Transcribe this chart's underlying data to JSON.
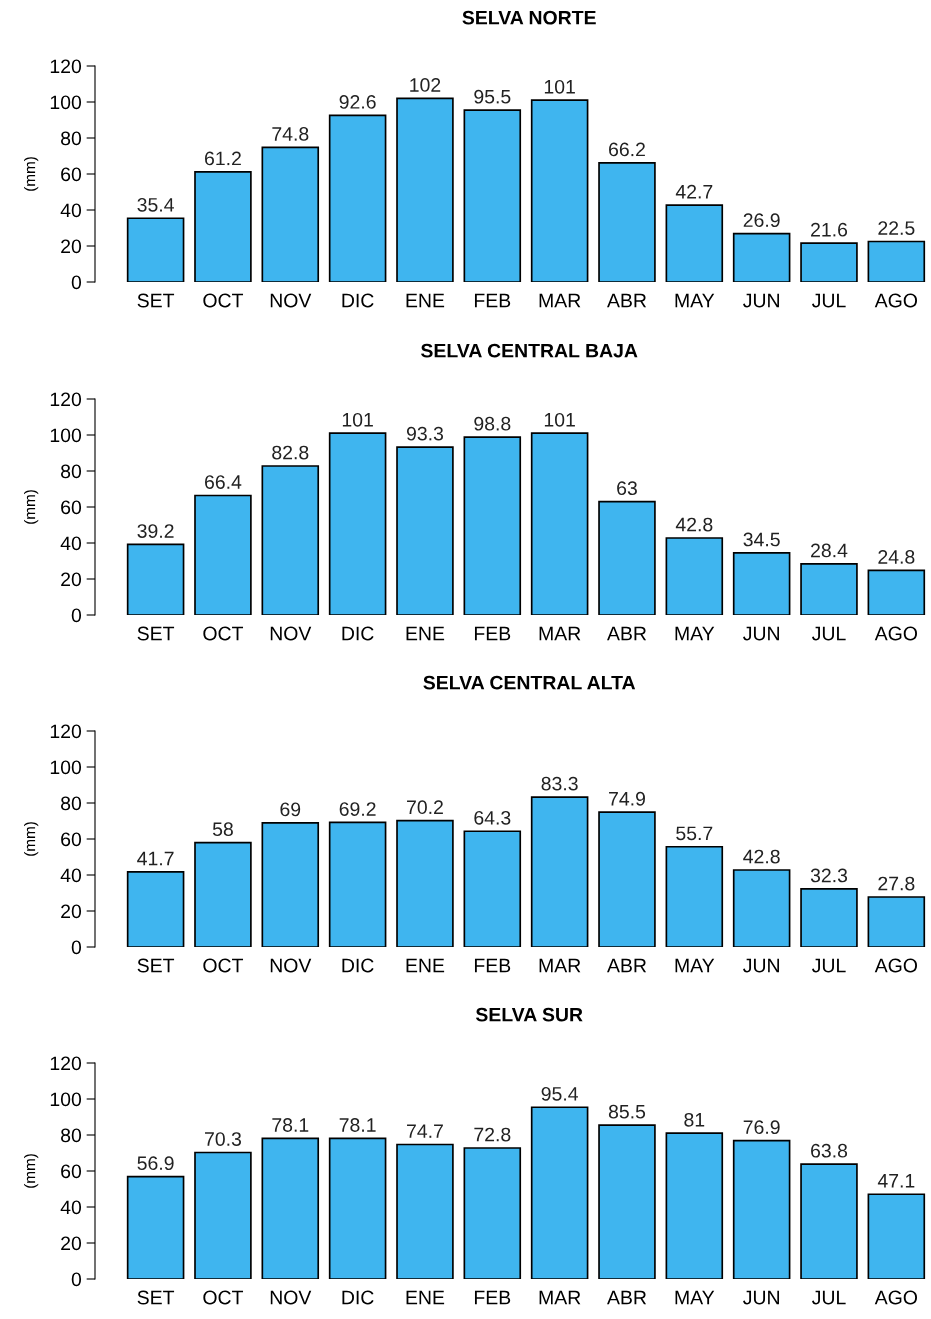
{
  "chart_data": [
    {
      "type": "bar",
      "title": "SELVA NORTE",
      "ylabel": "(mm)",
      "categories": [
        "SET",
        "OCT",
        "NOV",
        "DIC",
        "ENE",
        "FEB",
        "MAR",
        "ABR",
        "MAY",
        "JUN",
        "JUL",
        "AGO"
      ],
      "values": [
        35.4,
        61.2,
        74.8,
        92.6,
        102,
        95.5,
        101,
        66.2,
        42.7,
        26.9,
        21.6,
        22.5
      ],
      "color": "#3fb5ef",
      "ylim": [
        0,
        120
      ],
      "yticks": [
        0,
        20,
        40,
        60,
        80,
        100,
        120
      ],
      "data_labels": true
    },
    {
      "type": "bar",
      "title": "SELVA CENTRAL BAJA",
      "ylabel": "(mm)",
      "categories": [
        "SET",
        "OCT",
        "NOV",
        "DIC",
        "ENE",
        "FEB",
        "MAR",
        "ABR",
        "MAY",
        "JUN",
        "JUL",
        "AGO"
      ],
      "values": [
        39.2,
        66.4,
        82.8,
        101,
        93.3,
        98.8,
        101,
        63,
        42.8,
        34.5,
        28.4,
        24.8
      ],
      "color": "#3fb5ef",
      "ylim": [
        0,
        120
      ],
      "yticks": [
        0,
        20,
        40,
        60,
        80,
        100,
        120
      ],
      "data_labels": true
    },
    {
      "type": "bar",
      "title": "SELVA CENTRAL ALTA",
      "ylabel": "(mm)",
      "categories": [
        "SET",
        "OCT",
        "NOV",
        "DIC",
        "ENE",
        "FEB",
        "MAR",
        "ABR",
        "MAY",
        "JUN",
        "JUL",
        "AGO"
      ],
      "values": [
        41.7,
        58,
        69,
        69.2,
        70.2,
        64.3,
        83.3,
        74.9,
        55.7,
        42.8,
        32.3,
        27.8
      ],
      "color": "#3fb5ef",
      "ylim": [
        0,
        120
      ],
      "yticks": [
        0,
        20,
        40,
        60,
        80,
        100,
        120
      ],
      "data_labels": true
    },
    {
      "type": "bar",
      "title": "SELVA SUR",
      "ylabel": "(mm)",
      "categories": [
        "SET",
        "OCT",
        "NOV",
        "DIC",
        "ENE",
        "FEB",
        "MAR",
        "ABR",
        "MAY",
        "JUN",
        "JUL",
        "AGO"
      ],
      "values": [
        56.9,
        70.3,
        78.1,
        78.1,
        74.7,
        72.8,
        95.4,
        85.5,
        81,
        76.9,
        63.8,
        47.1
      ],
      "color": "#3fb5ef",
      "ylim": [
        0,
        120
      ],
      "yticks": [
        0,
        20,
        40,
        60,
        80,
        100,
        120
      ],
      "data_labels": true
    }
  ]
}
